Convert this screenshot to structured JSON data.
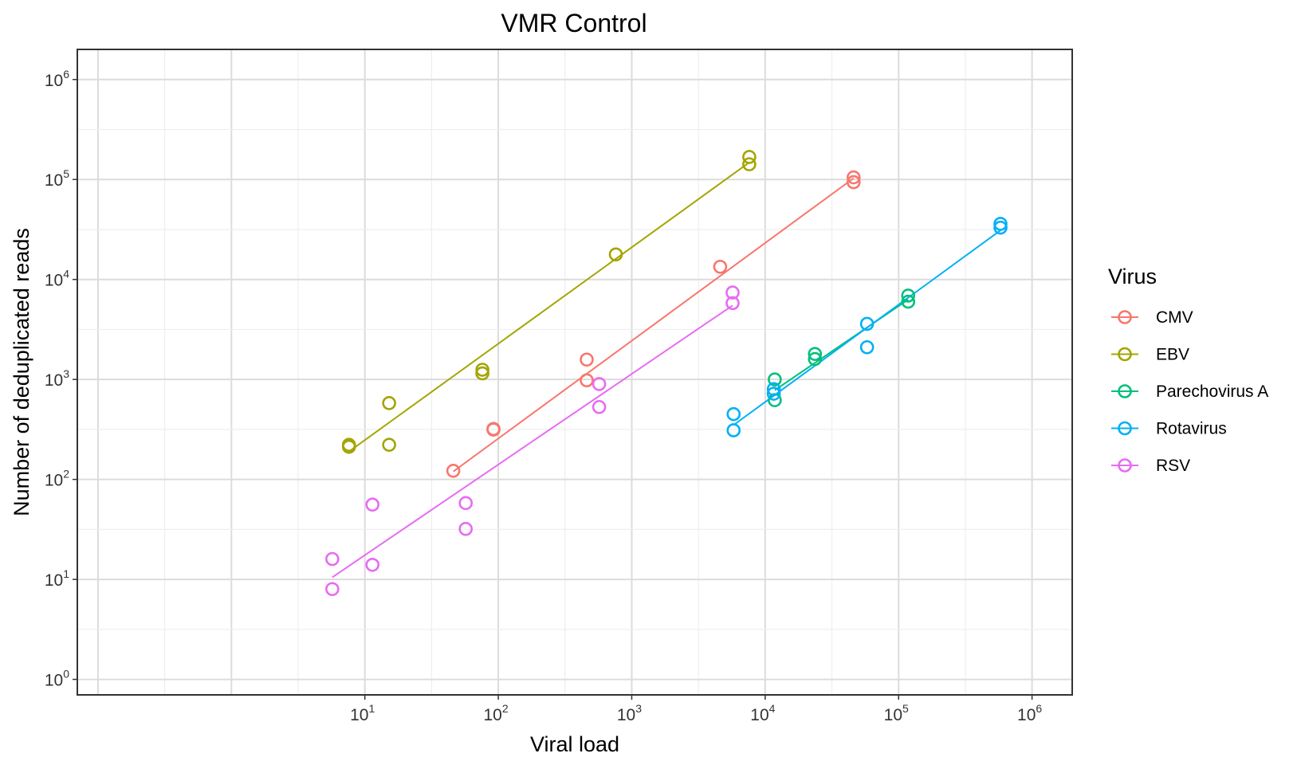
{
  "chart_data": {
    "type": "scatter",
    "title": "VMR Control",
    "xlabel": "Viral load",
    "ylabel": "Number of deduplicated reads",
    "x_scale": "log10",
    "y_scale": "log10",
    "xlim": [
      0.07,
      2000000
    ],
    "ylim": [
      0.7,
      2000000
    ],
    "x_ticks": [
      {
        "base": "10",
        "exp": "1",
        "value": 10
      },
      {
        "base": "10",
        "exp": "2",
        "value": 100
      },
      {
        "base": "10",
        "exp": "3",
        "value": 1000
      },
      {
        "base": "10",
        "exp": "4",
        "value": 10000
      },
      {
        "base": "10",
        "exp": "5",
        "value": 100000
      },
      {
        "base": "10",
        "exp": "6",
        "value": 1000000
      }
    ],
    "y_ticks": [
      {
        "base": "10",
        "exp": "0",
        "value": 1
      },
      {
        "base": "10",
        "exp": "1",
        "value": 10
      },
      {
        "base": "10",
        "exp": "2",
        "value": 100
      },
      {
        "base": "10",
        "exp": "3",
        "value": 1000
      },
      {
        "base": "10",
        "exp": "4",
        "value": 10000
      },
      {
        "base": "10",
        "exp": "5",
        "value": 100000
      },
      {
        "base": "10",
        "exp": "6",
        "value": 1000000
      }
    ],
    "grid": true,
    "legend_title": "Virus",
    "legend_position": "right",
    "series": [
      {
        "name": "CMV",
        "color": "#F8766D",
        "points": [
          [
            46,
            122
          ],
          [
            92,
            320
          ],
          [
            92,
            315
          ],
          [
            460,
            1580
          ],
          [
            460,
            980
          ],
          [
            4600,
            13400
          ],
          [
            46000,
            105000
          ],
          [
            46000,
            94000
          ]
        ],
        "fit": [
          [
            46,
            120
          ],
          [
            46000,
            103000
          ]
        ]
      },
      {
        "name": "EBV",
        "color": "#A3A500",
        "points": [
          [
            7.6,
            222
          ],
          [
            7.6,
            212
          ],
          [
            15.2,
            580
          ],
          [
            15.2,
            222
          ],
          [
            76,
            1250
          ],
          [
            76,
            1150
          ],
          [
            760,
            17800
          ],
          [
            7600,
            168000
          ],
          [
            7600,
            142000
          ]
        ],
        "fit": [
          [
            7.6,
            190
          ],
          [
            7600,
            148000
          ]
        ]
      },
      {
        "name": "Parechovirus A",
        "color": "#00BF7D",
        "points": [
          [
            11800,
            1000
          ],
          [
            11800,
            620
          ],
          [
            23600,
            1800
          ],
          [
            23600,
            1600
          ],
          [
            118000,
            6900
          ],
          [
            118000,
            6000
          ]
        ],
        "fit": [
          [
            11800,
            780
          ],
          [
            118000,
            6300
          ]
        ]
      },
      {
        "name": "Rotavirus",
        "color": "#00B0F6",
        "points": [
          [
            5800,
            450
          ],
          [
            5800,
            310
          ],
          [
            11600,
            800
          ],
          [
            11600,
            720
          ],
          [
            58000,
            3600
          ],
          [
            58000,
            2100
          ],
          [
            580000,
            36000
          ],
          [
            580000,
            33000
          ]
        ],
        "fit": [
          [
            5800,
            350
          ],
          [
            580000,
            31000
          ]
        ]
      },
      {
        "name": "RSV",
        "color": "#E76BF3",
        "points": [
          [
            5.7,
            16
          ],
          [
            5.7,
            8
          ],
          [
            11.4,
            56
          ],
          [
            11.4,
            14
          ],
          [
            57,
            58
          ],
          [
            57,
            32
          ],
          [
            570,
            900
          ],
          [
            570,
            530
          ],
          [
            5700,
            7400
          ],
          [
            5700,
            5800
          ]
        ],
        "fit": [
          [
            5.7,
            10.5
          ],
          [
            5700,
            5500
          ]
        ]
      }
    ]
  }
}
